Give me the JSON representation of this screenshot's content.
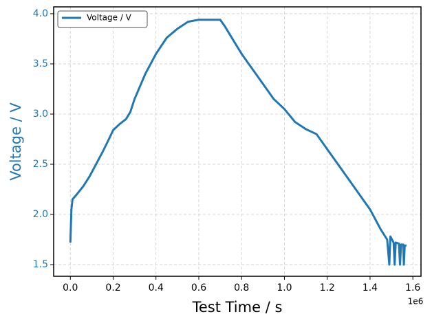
{
  "chart_data": {
    "type": "line",
    "xlabel": "Test Time / s",
    "ylabel": "Voltage / V",
    "ylabel_color": "#1f77b4",
    "x_offset_label": "1e6",
    "xlim": [
      -78000,
      1638000
    ],
    "ylim": [
      1.384,
      4.068
    ],
    "xticks": [
      {
        "value": 0,
        "label": "0.0"
      },
      {
        "value": 200000,
        "label": "0.2"
      },
      {
        "value": 400000,
        "label": "0.4"
      },
      {
        "value": 600000,
        "label": "0.6"
      },
      {
        "value": 800000,
        "label": "0.8"
      },
      {
        "value": 1000000,
        "label": "1.0"
      },
      {
        "value": 1200000,
        "label": "1.2"
      },
      {
        "value": 1400000,
        "label": "1.4"
      },
      {
        "value": 1600000,
        "label": "1.6"
      }
    ],
    "yticks": [
      1.5,
      {
        "value": 2,
        "label": "2.0"
      },
      2.5,
      {
        "value": 3,
        "label": "3.0"
      },
      3.5,
      {
        "value": 4,
        "label": "4.0"
      }
    ],
    "grid": true,
    "legend_loc": "upper left",
    "x": [
      0,
      5000,
      10000,
      30000,
      60000,
      90000,
      120000,
      150000,
      180000,
      200000,
      230000,
      260000,
      280000,
      300000,
      350000,
      400000,
      450000,
      500000,
      550000,
      600000,
      700000,
      720000,
      800000,
      850000,
      900000,
      950000,
      1000000,
      1050000,
      1100000,
      1150000,
      1200000,
      1250000,
      1300000,
      1350000,
      1400000,
      1450000,
      1480000,
      1490000,
      1495000,
      1510000,
      1515000,
      1520000,
      1535000,
      1540000,
      1545000,
      1555000,
      1558000,
      1562000,
      1570000
    ],
    "series": [
      {
        "name": "Voltage / V",
        "color": "#1f77b4",
        "values": [
          1.72,
          2.05,
          2.15,
          2.2,
          2.28,
          2.38,
          2.5,
          2.62,
          2.75,
          2.84,
          2.9,
          2.95,
          3.02,
          3.15,
          3.4,
          3.6,
          3.76,
          3.85,
          3.92,
          3.94,
          3.94,
          3.88,
          3.6,
          3.45,
          3.3,
          3.15,
          3.05,
          2.92,
          2.85,
          2.8,
          2.65,
          2.5,
          2.35,
          2.2,
          2.05,
          1.85,
          1.75,
          1.5,
          1.78,
          1.72,
          1.5,
          1.72,
          1.71,
          1.5,
          1.7,
          1.7,
          1.5,
          1.69,
          1.69
        ]
      }
    ]
  }
}
